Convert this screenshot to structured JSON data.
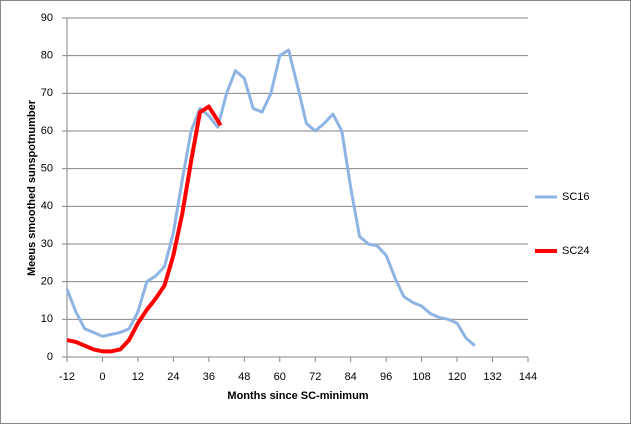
{
  "chart_data": {
    "type": "line",
    "xlabel": "Months since SC-minimum",
    "ylabel": "Meeus smoothed sunspotnumber",
    "xlim": [
      -12,
      144
    ],
    "xticks": [
      -12,
      0,
      12,
      24,
      36,
      48,
      60,
      72,
      84,
      96,
      108,
      120,
      132,
      144
    ],
    "ylim": [
      0,
      90
    ],
    "yticks": [
      0,
      10,
      20,
      30,
      40,
      50,
      60,
      70,
      80,
      90
    ],
    "grid": true,
    "legend": "right",
    "series": [
      {
        "name": "SC16",
        "color": "#8eb4e3",
        "width": 3,
        "x": [
          -12,
          -9,
          -6,
          -3,
          0,
          3,
          6,
          9,
          12,
          15,
          18,
          21,
          24,
          27,
          30,
          33,
          36,
          39,
          42,
          45,
          48,
          51,
          54,
          57,
          60,
          63,
          66,
          69,
          72,
          75,
          78,
          81,
          84,
          87,
          90,
          93,
          96,
          99,
          102,
          105,
          108,
          111,
          114,
          117,
          120,
          123,
          126
        ],
        "values": [
          18,
          12,
          7.5,
          6.5,
          5.5,
          6,
          6.5,
          7.5,
          12,
          20,
          21.5,
          24,
          33,
          47,
          60,
          66,
          64,
          61,
          70,
          76,
          74,
          66,
          65,
          70,
          80,
          81.5,
          72,
          62,
          60,
          62,
          64.5,
          60,
          45,
          32,
          30,
          29.5,
          27,
          21,
          16,
          14.5,
          13.5,
          11.5,
          10.5,
          10,
          9,
          5,
          3
        ]
      },
      {
        "name": "SC24",
        "color": "#ff0000",
        "width": 4,
        "x": [
          -12,
          -9,
          -6,
          -3,
          0,
          3,
          6,
          9,
          12,
          15,
          18,
          21,
          24,
          27,
          30,
          33,
          36,
          38,
          40
        ],
        "values": [
          4.5,
          4,
          3,
          2,
          1.5,
          1.5,
          2,
          4.5,
          9,
          12.5,
          15.5,
          19,
          27,
          38,
          52,
          65,
          66.5,
          64,
          61.5
        ]
      }
    ]
  }
}
